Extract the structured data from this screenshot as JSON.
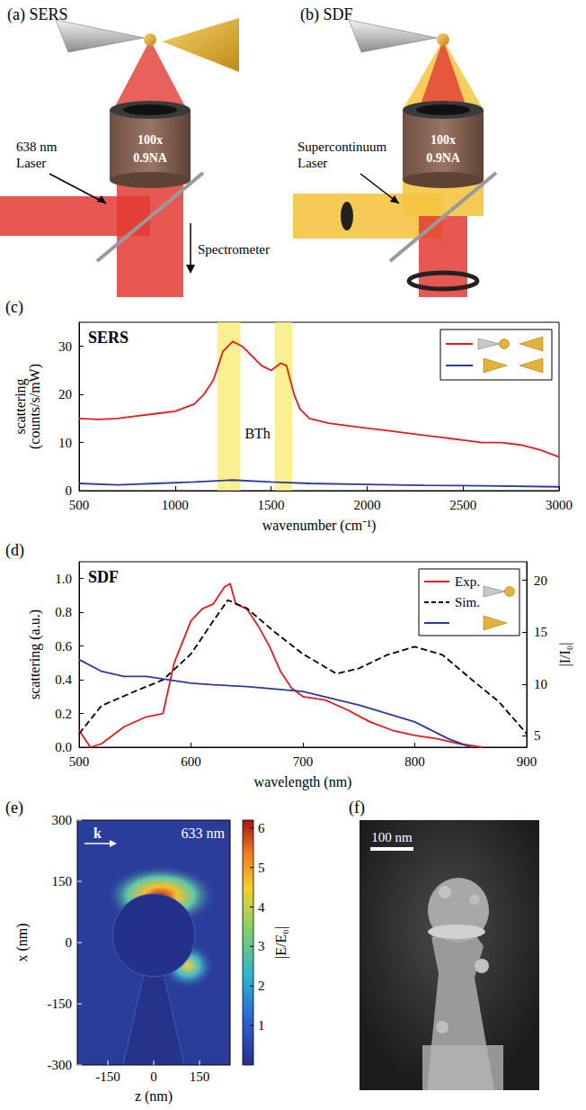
{
  "panels_ab": [
    {
      "letter": "(a)",
      "title": "SERS",
      "objective": [
        "100x",
        "0.9NA"
      ],
      "source": [
        "638 nm",
        "Laser"
      ],
      "detector": "Spectrometer"
    },
    {
      "letter": "(b)",
      "title": "SDF",
      "objective": [
        "100x",
        "0.9NA"
      ],
      "source": [
        "Supercontinuum",
        "Laser"
      ]
    }
  ],
  "chart_data": [
    {
      "letter": "(c)",
      "title": "SERS",
      "type": "line",
      "xlabel": "wavenumber (cm⁻¹)",
      "ylabel": "scattering\n(counts/s/mW)",
      "xlim": [
        500,
        3000
      ],
      "xticks": [
        500,
        1000,
        1500,
        2000,
        2500,
        3000
      ],
      "ylim": [
        0,
        35
      ],
      "yticks": [
        0,
        10,
        20,
        30
      ],
      "legend": "upper right",
      "bands": [
        [
          1220,
          1340
        ],
        [
          1520,
          1610
        ]
      ],
      "band_label": "BTh",
      "series": [
        {
          "color": "#e41a1c",
          "x": [
            500,
            600,
            700,
            800,
            900,
            1000,
            1100,
            1150,
            1200,
            1250,
            1300,
            1350,
            1400,
            1450,
            1500,
            1550,
            1580,
            1620,
            1650,
            1700,
            1800,
            1900,
            2000,
            2100,
            2200,
            2300,
            2400,
            2500,
            2600,
            2700,
            2800,
            2900,
            3000
          ],
          "values": [
            15,
            14.8,
            15,
            15.5,
            16,
            16.5,
            18,
            20,
            23,
            29,
            31,
            30,
            28,
            26,
            25,
            26.5,
            26,
            20,
            17,
            15,
            14,
            13.5,
            13,
            12.5,
            12,
            11.5,
            11,
            10.5,
            10,
            10,
            9.5,
            8.5,
            7
          ]
        },
        {
          "color": "#2b3b9c",
          "x": [
            500,
            700,
            900,
            1100,
            1300,
            1500,
            1700,
            2000,
            2300,
            2600,
            3000
          ],
          "values": [
            1.5,
            1.2,
            1.5,
            1.8,
            2.2,
            1.8,
            1.5,
            1.3,
            1.1,
            1.0,
            0.8
          ]
        }
      ]
    },
    {
      "letter": "(d)",
      "title": "SDF",
      "type": "line",
      "xlabel": "wavelength (nm)",
      "ylabel": "scattering (a.u.)",
      "y2label": "|I/I₀|",
      "xlim": [
        500,
        900
      ],
      "xticks": [
        500,
        600,
        700,
        800,
        900
      ],
      "ylim": [
        0,
        1.1
      ],
      "yticks": [
        {
          "value": 0,
          "label": "0.0"
        },
        0.2,
        0.4,
        0.6,
        0.8,
        {
          "value": 1,
          "label": "1.0"
        }
      ],
      "y2lim": [
        3.9,
        21.8
      ],
      "y2ticks": [
        5,
        10,
        15,
        20
      ],
      "legend": "upper right",
      "series": [
        {
          "name": "Exp.",
          "color": "#e41a1c",
          "x": [
            500,
            510,
            520,
            540,
            560,
            575,
            585,
            600,
            610,
            620,
            630,
            635,
            640,
            650,
            660,
            670,
            680,
            690,
            700,
            720,
            740,
            760,
            780,
            800,
            820,
            840,
            860
          ],
          "values": [
            0.1,
            0,
            0.02,
            0.12,
            0.18,
            0.2,
            0.5,
            0.75,
            0.82,
            0.85,
            0.95,
            0.97,
            0.85,
            0.82,
            0.72,
            0.6,
            0.45,
            0.35,
            0.3,
            0.28,
            0.22,
            0.15,
            0.1,
            0.07,
            0.05,
            0.02,
            0
          ]
        },
        {
          "name": "Sim.",
          "color": "#000000",
          "line_style": "dashed",
          "axis": "y2",
          "x": [
            500,
            520,
            550,
            575,
            600,
            620,
            633,
            650,
            675,
            700,
            730,
            750,
            775,
            800,
            825,
            850,
            875,
            900
          ],
          "values": [
            5.2,
            7.9,
            9.3,
            10.4,
            12.9,
            16.1,
            18.1,
            17.3,
            15,
            12.9,
            11,
            11.5,
            12.8,
            13.6,
            12.8,
            10.5,
            8.3,
            5.2
          ]
        },
        {
          "color": "#2b3b9c",
          "x": [
            500,
            520,
            540,
            560,
            580,
            600,
            620,
            650,
            700,
            750,
            800,
            830,
            850
          ],
          "values": [
            0.52,
            0.45,
            0.42,
            0.42,
            0.4,
            0.38,
            0.37,
            0.36,
            0.33,
            0.25,
            0.15,
            0.05,
            0
          ]
        }
      ]
    }
  ],
  "field_map": {
    "letter": "(e)",
    "xlabel": "z (nm)",
    "ylabel": "x (nm)",
    "xlim": [
      -250,
      250
    ],
    "xticks": [
      -150,
      0,
      150
    ],
    "ylim": [
      -300,
      300
    ],
    "yticks": [
      -300,
      -150,
      0,
      150,
      300
    ],
    "wavelength": "633 nm",
    "k": "k",
    "colorbar": {
      "label": "|E/E₀|",
      "range": [
        0,
        6.2
      ],
      "ticks": [
        1,
        2,
        3,
        4,
        5,
        6
      ]
    }
  },
  "sem_image": {
    "letter": "(f)",
    "scale_bar": "100 nm"
  }
}
